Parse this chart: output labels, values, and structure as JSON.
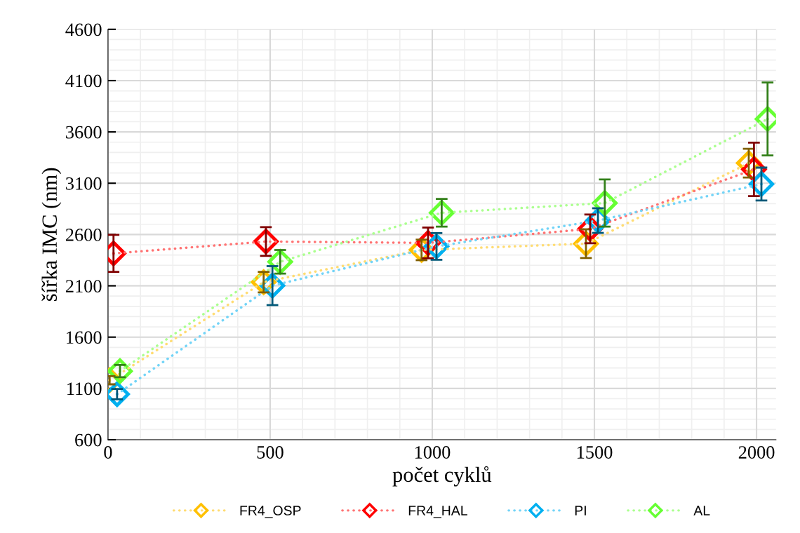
{
  "chart_data": {
    "type": "line",
    "xlabel": "počet cyklů",
    "ylabel": "šířka IMC (nm)",
    "xlim": [
      0,
      2060
    ],
    "xticks": [
      0,
      500,
      1000,
      1500,
      2000
    ],
    "ylim": [
      600,
      4600
    ],
    "yticks": [
      600,
      1100,
      1600,
      2100,
      2600,
      3100,
      3600,
      4100,
      4600
    ],
    "grid": true,
    "legend": "bottom",
    "marker": "diamond",
    "line_style": "dotted",
    "series": [
      {
        "name": "FR4_OSP",
        "color": "#ffc000",
        "x": [
          5,
          480,
          967,
          1474,
          1976
        ],
        "values": [
          1180,
          2136,
          2450,
          2511,
          3296
        ],
        "errors": [
          40,
          100,
          100,
          140,
          140
        ]
      },
      {
        "name": "FR4_HAL",
        "color": "#ff0000",
        "x": [
          17,
          487,
          987,
          1487,
          1992
        ],
        "values": [
          2416,
          2532,
          2518,
          2655,
          3235
        ],
        "errors": [
          180,
          140,
          150,
          140,
          260
        ]
      },
      {
        "name": "PI",
        "color": "#00b0f0",
        "x": [
          28,
          507,
          1013,
          1511,
          2015
        ],
        "values": [
          1044,
          2102,
          2484,
          2736,
          3092
        ],
        "errors": [
          50,
          190,
          130,
          120,
          160
        ]
      },
      {
        "name": "AL",
        "color": "#66ff33",
        "x": [
          37,
          531,
          1029,
          1532,
          2034
        ],
        "values": [
          1269,
          2334,
          2812,
          2907,
          3726
        ],
        "errors": [
          60,
          115,
          135,
          230,
          355
        ]
      }
    ]
  }
}
